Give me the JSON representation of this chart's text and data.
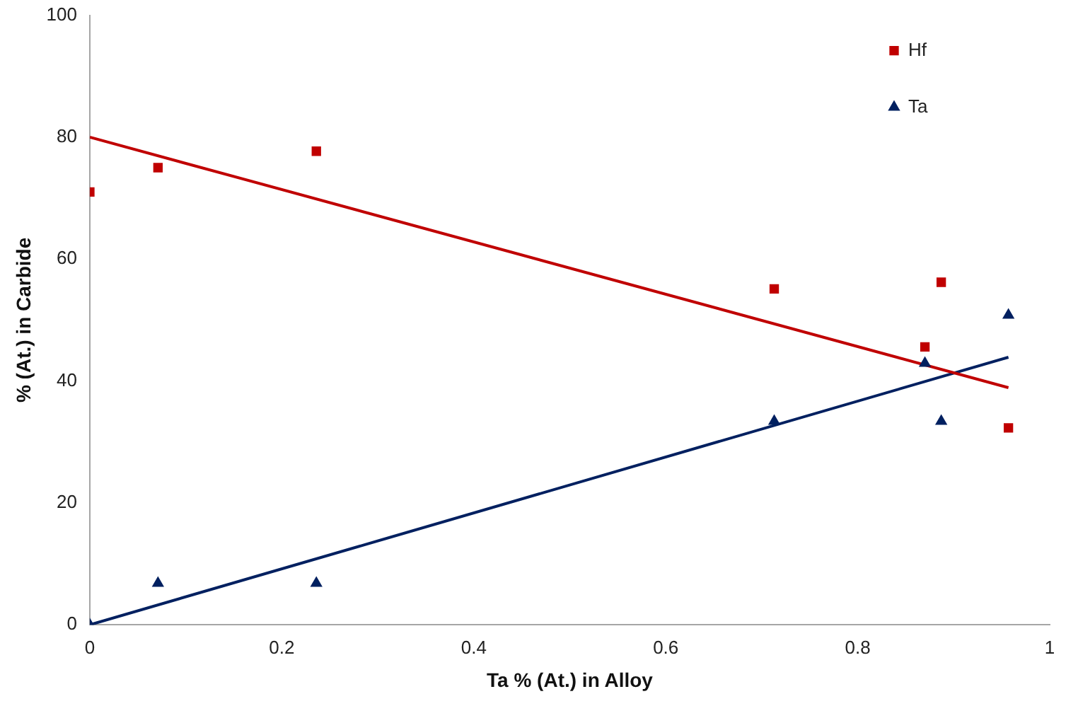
{
  "chart_data": {
    "type": "scatter",
    "xlabel": "Ta % (At.) in Alloy",
    "ylabel": "% (At.) in Carbide",
    "xlim": [
      0,
      1
    ],
    "xticks": [
      0,
      0.2,
      0.4,
      0.6,
      0.8,
      1
    ],
    "ylim": [
      0,
      100
    ],
    "yticks": [
      0,
      20,
      40,
      60,
      80,
      100
    ],
    "grid": false,
    "legend": "top right",
    "series": [
      {
        "name": "Hf",
        "type": "scatter",
        "marker": "square",
        "color": "#c00000",
        "x": [
          0,
          0.071,
          0.236,
          0.713,
          0.87,
          0.887,
          0.957
        ],
        "values": [
          71,
          75,
          77.7,
          55.1,
          45.6,
          56.2,
          32.3
        ]
      },
      {
        "name": "Ta",
        "type": "scatter",
        "marker": "triangle",
        "color": "#002060",
        "x": [
          0,
          0.071,
          0.236,
          0.713,
          0.87,
          0.887,
          0.957
        ],
        "values": [
          0,
          6.8,
          6.8,
          33.4,
          42.9,
          33.4,
          50.8
        ]
      },
      {
        "type": "line",
        "marker": "none",
        "color": "#c00000",
        "x": [
          0,
          0.957
        ],
        "values": [
          80,
          38.9
        ]
      },
      {
        "type": "line",
        "marker": "none",
        "color": "#002060",
        "x": [
          0,
          0.957
        ],
        "values": [
          0,
          43.9
        ]
      }
    ]
  }
}
